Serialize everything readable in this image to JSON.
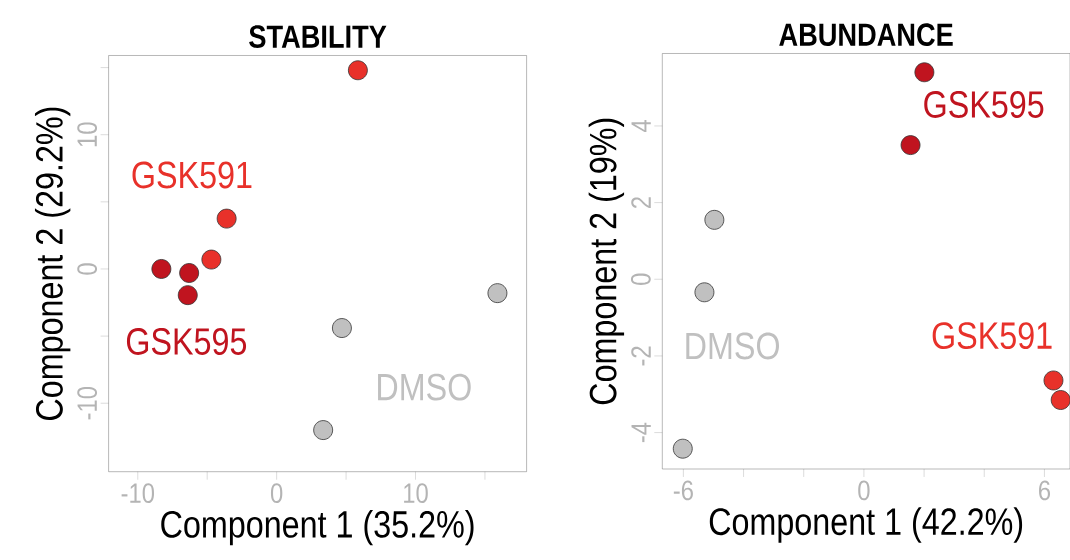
{
  "chart_data": [
    {
      "type": "scatter",
      "title": "STABILITY",
      "xlabel": "Component 1 (35.2%)",
      "ylabel": "Component 2 (29.2%)",
      "marker": "circle",
      "xlim": [
        -12.1,
        18.0
      ],
      "ylim": [
        -15.1,
        15.9
      ],
      "xticks": [
        -10,
        {
          "value": -5,
          "label": null
        },
        0,
        {
          "value": 5,
          "label": null
        },
        10,
        {
          "value": 15,
          "label": null
        }
      ],
      "yticks": [
        -10,
        {
          "value": -5,
          "label": null
        },
        0,
        {
          "value": 5,
          "label": null
        },
        10,
        {
          "value": 15,
          "label": null
        }
      ],
      "series": [
        {
          "name": "GSK591",
          "color": "#e8312a",
          "x": [
            5.85,
            -3.6,
            -4.7
          ],
          "values": [
            14.8,
            3.75,
            0.7
          ]
        },
        {
          "name": "GSK595",
          "color": "#c0141f",
          "x": [
            -8.3,
            -6.3,
            -6.4
          ],
          "values": [
            0.0,
            -0.3,
            -1.95
          ]
        },
        {
          "name": "DMSO",
          "color": "#c0c0c0",
          "x": [
            15.9,
            4.7,
            3.35
          ],
          "values": [
            -1.8,
            -4.4,
            -12.0
          ]
        }
      ]
    },
    {
      "type": "scatter",
      "title": "ABUNDANCE",
      "xlabel": "Component 1 (42.2%)",
      "ylabel": "Component 2 (19%)",
      "marker": "circle",
      "xlim": [
        -6.7,
        6.85
      ],
      "ylim": [
        -4.95,
        5.89
      ],
      "xticks": [
        -6,
        {
          "value": -4,
          "label": null
        },
        {
          "value": -2,
          "label": null
        },
        0,
        {
          "value": 2,
          "label": null
        },
        {
          "value": 4,
          "label": null
        },
        6
      ],
      "yticks": [
        -4,
        -2,
        0,
        2,
        4
      ],
      "series": [
        {
          "name": "GSK591",
          "color": "#e8312a",
          "x": [
            6.3,
            6.54
          ],
          "values": [
            -2.64,
            -3.15
          ]
        },
        {
          "name": "GSK595",
          "color": "#c0141f",
          "x": [
            2.01,
            1.55
          ],
          "values": [
            5.4,
            3.5
          ]
        },
        {
          "name": "DMSO",
          "color": "#c0c0c0",
          "x": [
            -4.97,
            -5.3,
            -6.02
          ],
          "values": [
            1.55,
            -0.34,
            -4.42
          ]
        }
      ]
    }
  ]
}
